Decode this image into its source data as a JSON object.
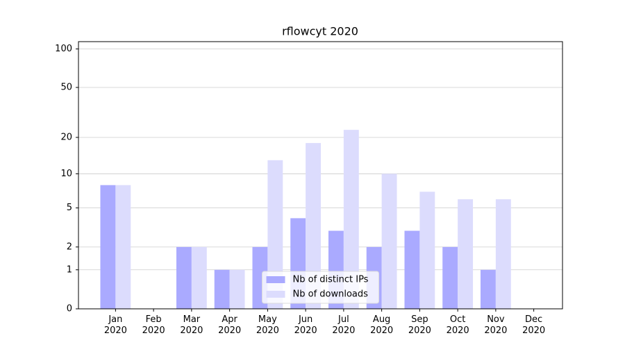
{
  "chart_data": {
    "type": "bar",
    "title": "rflowcyt 2020",
    "categories": [
      "Jan 2020",
      "Feb 2020",
      "Mar 2020",
      "Apr 2020",
      "May 2020",
      "Jun 2020",
      "Jul 2020",
      "Aug 2020",
      "Sep 2020",
      "Oct 2020",
      "Nov 2020",
      "Dec 2020"
    ],
    "series": [
      {
        "name": "Nb of distinct IPs",
        "color": "#aaaaff",
        "values": [
          8,
          0,
          2,
          1,
          2,
          4,
          3,
          2,
          3,
          2,
          1,
          0
        ]
      },
      {
        "name": "Nb of downloads",
        "color": "#dcdcfd",
        "values": [
          8,
          0,
          2,
          1,
          13,
          18,
          23,
          10,
          7,
          6,
          6,
          0
        ]
      }
    ],
    "yscale": "log1p",
    "ylim": [
      0,
      114
    ],
    "yticks": [
      0,
      1,
      2,
      5,
      10,
      20,
      50,
      100
    ],
    "grid": true,
    "legend": "lower center"
  }
}
